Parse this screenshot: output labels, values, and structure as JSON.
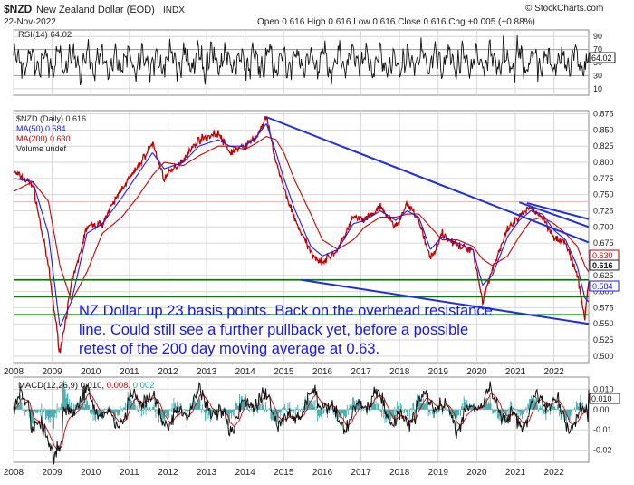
{
  "header": {
    "symbol": "$NZD",
    "name": "New Zealand Dollar (EOD)",
    "exchange": "INDX",
    "date": "22-Nov-2022",
    "quote": "Open 0.616 High 0.616 Low 0.616 Close 0.616 Chg +0.005 (+0.88%)",
    "credit": "© StockCharts.com"
  },
  "colors": {
    "price": "#c00000",
    "price_dark": "#202020",
    "ma50": "#1a1aff",
    "ma200": "#cc0000",
    "trend_line": "#1f2fe0",
    "support_line": "#0a7a0a",
    "macd_line": "#111111",
    "macd_signal": "#d00000",
    "macd_hist": "#2aa0a0",
    "grid": "#d6d6d6",
    "axis_text": "#222222"
  },
  "rsi_panel": {
    "label": "RSI(14) 64.02",
    "current": "64.02",
    "ticks": [
      "90",
      "70",
      "50",
      "30",
      "10"
    ]
  },
  "price_panel": {
    "legend": [
      "$NZD (Daily) 0.616",
      "MA(50) 0.584",
      "MA(200) 0.630",
      "Volume undef"
    ],
    "y_ticks": [
      "0.875",
      "0.850",
      "0.825",
      "0.800",
      "0.775",
      "0.750",
      "0.725",
      "0.700",
      "0.675",
      "0.650",
      "0.625",
      "0.600",
      "0.575",
      "0.550",
      "0.525",
      "0.500"
    ],
    "current_labels": {
      "ma200": "0.630",
      "close": "0.616",
      "ma50": "0.584"
    },
    "annotation": [
      "NZ Dollar up 23 basis points. Back on the overhead resistance",
      "line. Could still see a further pullback yet, before a possible",
      "retest of the 200 day moving average at 0.63."
    ]
  },
  "macd_panel": {
    "legend": "MACD(12,26,9) 0.010, 0.008, 0.002",
    "legend_parts": [
      "MACD(12,26,9) 0.010, ",
      "0.008",
      ", ",
      "0.002"
    ],
    "ticks": [
      "0.010",
      "0.00",
      "-0.01",
      "-0.02"
    ]
  },
  "x_ticks": [
    "2008",
    "2009",
    "2010",
    "2011",
    "2012",
    "2013",
    "2014",
    "2015",
    "2016",
    "2017",
    "2018",
    "2019",
    "2020",
    "2021",
    "2022"
  ],
  "chart_data": {
    "type": "line",
    "title": "$NZD New Zealand Dollar (EOD) INDX",
    "subtitle": "22-Nov-2022",
    "x": [
      2008.0,
      2008.5,
      2008.9,
      2009.2,
      2009.5,
      2009.9,
      2010.3,
      2010.8,
      2011.2,
      2011.6,
      2011.9,
      2012.4,
      2012.8,
      2013.3,
      2013.6,
      2014.0,
      2014.3,
      2014.55,
      2014.8,
      2015.0,
      2015.3,
      2015.7,
      2016.0,
      2016.4,
      2016.8,
      2017.1,
      2017.5,
      2017.9,
      2018.2,
      2018.5,
      2018.8,
      2019.1,
      2019.5,
      2019.9,
      2020.15,
      2020.4,
      2020.8,
      2021.1,
      2021.4,
      2021.7,
      2022.0,
      2022.3,
      2022.6,
      2022.8,
      2022.9
    ],
    "series": [
      {
        "name": "$NZD (Daily)",
        "values": [
          0.785,
          0.765,
          0.64,
          0.505,
          0.61,
          0.7,
          0.705,
          0.76,
          0.79,
          0.83,
          0.775,
          0.805,
          0.835,
          0.845,
          0.815,
          0.825,
          0.84,
          0.87,
          0.8,
          0.76,
          0.71,
          0.66,
          0.645,
          0.665,
          0.715,
          0.71,
          0.73,
          0.7,
          0.735,
          0.71,
          0.65,
          0.69,
          0.67,
          0.665,
          0.585,
          0.635,
          0.695,
          0.715,
          0.73,
          0.715,
          0.685,
          0.675,
          0.625,
          0.56,
          0.616
        ]
      },
      {
        "name": "MA(50)",
        "values": [
          0.775,
          0.77,
          0.69,
          0.545,
          0.585,
          0.69,
          0.705,
          0.745,
          0.78,
          0.815,
          0.79,
          0.8,
          0.825,
          0.835,
          0.825,
          0.825,
          0.84,
          0.86,
          0.815,
          0.775,
          0.725,
          0.67,
          0.655,
          0.665,
          0.705,
          0.71,
          0.725,
          0.71,
          0.725,
          0.715,
          0.665,
          0.685,
          0.675,
          0.665,
          0.61,
          0.625,
          0.685,
          0.71,
          0.725,
          0.72,
          0.695,
          0.68,
          0.64,
          0.59,
          0.584
        ]
      },
      {
        "name": "MA(200)",
        "values": [
          0.755,
          0.77,
          0.74,
          0.64,
          0.585,
          0.63,
          0.69,
          0.715,
          0.745,
          0.78,
          0.8,
          0.795,
          0.81,
          0.825,
          0.825,
          0.82,
          0.83,
          0.84,
          0.835,
          0.815,
          0.77,
          0.72,
          0.68,
          0.665,
          0.68,
          0.7,
          0.715,
          0.715,
          0.72,
          0.72,
          0.7,
          0.68,
          0.68,
          0.67,
          0.65,
          0.64,
          0.655,
          0.685,
          0.71,
          0.715,
          0.705,
          0.69,
          0.67,
          0.64,
          0.63
        ]
      }
    ],
    "ylim": [
      0.49,
      0.88
    ],
    "xlim": [
      2008.0,
      2022.9
    ],
    "trend_lines": [
      {
        "kind": "resistance",
        "points": [
          [
            2014.55,
            0.87
          ],
          [
            2022.9,
            0.676
          ]
        ]
      },
      {
        "kind": "resistance",
        "points": [
          [
            2021.1,
            0.738
          ],
          [
            2022.9,
            0.7
          ]
        ]
      },
      {
        "kind": "resistance",
        "points": [
          [
            2021.3,
            0.737
          ],
          [
            2022.9,
            0.712
          ]
        ]
      },
      {
        "kind": "support",
        "points": [
          [
            2015.45,
            0.618
          ],
          [
            2022.9,
            0.55
          ]
        ]
      }
    ],
    "horizontal_levels": [
      0.618,
      0.592,
      0.564
    ],
    "rsi": {
      "ylim": [
        0,
        100
      ],
      "last": 64.02
    },
    "macd": {
      "macd": 0.01,
      "signal": 0.008,
      "histogram": 0.002,
      "ylim": [
        -0.026,
        0.016
      ]
    },
    "grid": true,
    "legend_position": "top-left"
  }
}
